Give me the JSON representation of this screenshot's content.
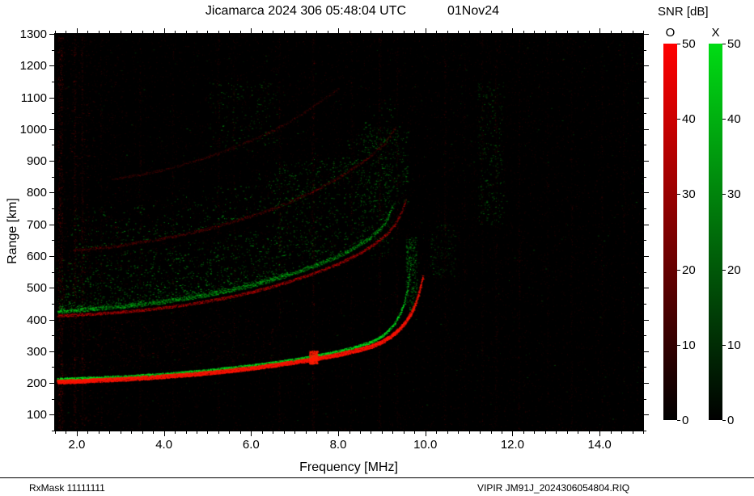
{
  "header": {
    "title_left": "Jicamarca 2024 306 05:48:04 UTC",
    "title_right": "01Nov24"
  },
  "footer": {
    "left": "RxMask 11111111",
    "right": "VIPIR  JM91J_2024306054804.RIQ"
  },
  "chart_data": {
    "type": "heatmap",
    "title": "Jicamarca 2024 306 05:48:04 UTC  01Nov24",
    "xlabel": "Frequency [MHz]",
    "ylabel": "Range [km]",
    "xlim": [
      1.5,
      15.0
    ],
    "ylim": [
      50,
      1300
    ],
    "xticks": [
      2.0,
      4.0,
      6.0,
      8.0,
      10.0,
      12.0,
      14.0
    ],
    "xtick_labels": [
      "2.0",
      "4.0",
      "6.0",
      "8.0",
      "10.0",
      "12.0",
      "14.0"
    ],
    "yticks": [
      100,
      200,
      300,
      400,
      500,
      600,
      700,
      800,
      900,
      1000,
      1100,
      1200,
      1300
    ],
    "x_minor_step": 0.25,
    "y_minor_step": 50,
    "background": "#000000",
    "colorbar_title": "SNR [dB]",
    "colorbars": [
      {
        "label": "O",
        "ticks": [
          0,
          10,
          20,
          30,
          40,
          50
        ],
        "top_color": "#ff0000",
        "bottom_color": "#000000"
      },
      {
        "label": "X",
        "ticks": [
          0,
          10,
          20,
          30,
          40,
          50
        ],
        "top_color": "#00dc14",
        "bottom_color": "#000000"
      }
    ],
    "noise": {
      "count": 24000,
      "color": [
        150,
        0,
        0
      ],
      "max_alpha": 0.3
    },
    "traces": [
      {
        "name": "F-region 4th hop O",
        "color": [
          185,
          0,
          0
        ],
        "width_km": 8,
        "alpha": 0.25,
        "density": 2,
        "fill": 0.5,
        "points": [
          [
            2.8,
            842
          ],
          [
            4.0,
            872
          ],
          [
            5.0,
            912
          ],
          [
            6.0,
            965
          ],
          [
            6.5,
            996
          ],
          [
            7.0,
            1034
          ],
          [
            7.5,
            1080
          ],
          [
            8.0,
            1130
          ]
        ]
      },
      {
        "name": "F-region 3rd hop O",
        "color": [
          200,
          0,
          0
        ],
        "width_km": 9,
        "alpha": 0.32,
        "density": 2,
        "fill": 0.6,
        "speckle_above": 120,
        "speckle_density": 0.5,
        "speckle_color": [
          0,
          210,
          25
        ],
        "points": [
          [
            1.9,
            618
          ],
          [
            3.0,
            634
          ],
          [
            4.0,
            656
          ],
          [
            5.0,
            686
          ],
          [
            6.0,
            726
          ],
          [
            6.5,
            750
          ],
          [
            7.0,
            778
          ],
          [
            7.5,
            810
          ],
          [
            8.0,
            848
          ],
          [
            8.5,
            892
          ],
          [
            8.8,
            922
          ],
          [
            9.1,
            962
          ],
          [
            9.3,
            1005
          ]
        ]
      },
      {
        "name": "F-region 2nd hop O",
        "color": [
          230,
          0,
          0
        ],
        "width_km": 9,
        "alpha": 0.5,
        "density": 3,
        "fill": 0.8,
        "points": [
          [
            1.55,
            412
          ],
          [
            2.0,
            415
          ],
          [
            2.5,
            419
          ],
          [
            3.0,
            424
          ],
          [
            3.5,
            430
          ],
          [
            4.0,
            438
          ],
          [
            4.5,
            447
          ],
          [
            5.0,
            458
          ],
          [
            5.5,
            471
          ],
          [
            6.0,
            487
          ],
          [
            6.5,
            505
          ],
          [
            7.0,
            526
          ],
          [
            7.5,
            549
          ],
          [
            8.0,
            576
          ],
          [
            8.5,
            610
          ],
          [
            8.8,
            636
          ],
          [
            9.1,
            668
          ],
          [
            9.3,
            700
          ],
          [
            9.45,
            740
          ],
          [
            9.55,
            780
          ]
        ]
      },
      {
        "name": "F-region 2nd hop X",
        "color": [
          0,
          215,
          25
        ],
        "width_km": 12,
        "alpha": 0.55,
        "density": 3,
        "fill": 0.7,
        "boost": true,
        "speckle_above": 170,
        "speckle_density": 2,
        "speckle_strong_until": 6.8,
        "points": [
          [
            1.55,
            426
          ],
          [
            2.0,
            430
          ],
          [
            3.0,
            440
          ],
          [
            4.0,
            456
          ],
          [
            5.0,
            478
          ],
          [
            6.0,
            507
          ],
          [
            6.5,
            526
          ],
          [
            7.0,
            548
          ],
          [
            7.5,
            572
          ],
          [
            8.0,
            600
          ],
          [
            8.3,
            622
          ],
          [
            8.7,
            655
          ],
          [
            9.0,
            692
          ],
          [
            9.15,
            725
          ],
          [
            9.25,
            760
          ]
        ]
      },
      {
        "name": "F-region 1st hop X",
        "color": [
          0,
          235,
          30
        ],
        "width_km": 9,
        "alpha": 0.8,
        "density": 4,
        "fill": 0.75,
        "boost": true,
        "points": [
          [
            1.55,
            212
          ],
          [
            2.0,
            214
          ],
          [
            3.0,
            220
          ],
          [
            4.0,
            228
          ],
          [
            5.0,
            240
          ],
          [
            6.0,
            255
          ],
          [
            6.5,
            264
          ],
          [
            7.0,
            274
          ],
          [
            7.5,
            286
          ],
          [
            8.0,
            300
          ],
          [
            8.4,
            314
          ],
          [
            8.8,
            332
          ],
          [
            9.0,
            348
          ],
          [
            9.15,
            365
          ],
          [
            9.3,
            390
          ],
          [
            9.42,
            420
          ],
          [
            9.52,
            455
          ],
          [
            9.58,
            495
          ],
          [
            9.63,
            545
          ],
          [
            9.66,
            590
          ]
        ]
      },
      {
        "name": "F-region 1st hop O",
        "color": [
          255,
          20,
          0
        ],
        "width_km": 13,
        "alpha": 0.95,
        "density": 7,
        "fill": 1,
        "boost": true,
        "points": [
          [
            1.55,
            204
          ],
          [
            2.0,
            206
          ],
          [
            2.5,
            209
          ],
          [
            3.0,
            212
          ],
          [
            3.5,
            216
          ],
          [
            4.0,
            221
          ],
          [
            4.5,
            226
          ],
          [
            5.0,
            232
          ],
          [
            5.5,
            239
          ],
          [
            6.0,
            247
          ],
          [
            6.5,
            256
          ],
          [
            7.0,
            266
          ],
          [
            7.5,
            277
          ],
          [
            8.0,
            290
          ],
          [
            8.5,
            306
          ],
          [
            8.8,
            318
          ],
          [
            9.0,
            330
          ],
          [
            9.2,
            347
          ],
          [
            9.4,
            370
          ],
          [
            9.55,
            395
          ],
          [
            9.7,
            428
          ],
          [
            9.8,
            462
          ],
          [
            9.88,
            500
          ],
          [
            9.94,
            535
          ]
        ]
      }
    ],
    "rfi_lines": [
      {
        "f": 1.62,
        "w": 6,
        "i": 0.8
      },
      {
        "f": 1.95,
        "w": 3,
        "i": 0.5
      },
      {
        "f": 2.12,
        "w": 2,
        "i": 0.4
      },
      {
        "f": 2.55,
        "w": 2,
        "i": 0.2
      },
      {
        "f": 3.45,
        "w": 2,
        "i": 0.25
      },
      {
        "f": 4.2,
        "w": 2,
        "i": 0.2
      },
      {
        "f": 5.25,
        "w": 3,
        "i": 0.25
      },
      {
        "f": 5.6,
        "w": 2,
        "i": 0.2
      },
      {
        "f": 6.65,
        "w": 2,
        "i": 0.25
      },
      {
        "f": 7.42,
        "w": 3,
        "i": 0.4
      },
      {
        "f": 8.3,
        "w": 2,
        "i": 0.2
      },
      {
        "f": 8.95,
        "w": 3,
        "i": 0.35
      },
      {
        "f": 9.35,
        "w": 2,
        "i": 0.25
      },
      {
        "f": 10.45,
        "w": 2,
        "i": 0.25
      },
      {
        "f": 10.9,
        "w": 2,
        "i": 0.15
      },
      {
        "f": 11.3,
        "w": 2,
        "i": 0.2
      },
      {
        "f": 11.62,
        "w": 3,
        "i": 0.25
      },
      {
        "f": 12.15,
        "w": 2,
        "i": 0.25
      },
      {
        "f": 12.8,
        "w": 2,
        "i": 0.18
      },
      {
        "f": 13.35,
        "w": 2,
        "i": 0.2
      },
      {
        "f": 14.05,
        "w": 2,
        "i": 0.18
      },
      {
        "f": 14.55,
        "w": 2,
        "i": 0.2
      }
    ],
    "speckle_patches": [
      {
        "f": [
          6.5,
          9.25
        ],
        "r": [
          600,
          900
        ],
        "c": "g",
        "n": 550,
        "a": 0.5
      },
      {
        "f": [
          5.0,
          6.6
        ],
        "r": [
          930,
          1150
        ],
        "c": "g",
        "n": 170,
        "a": 0.45
      },
      {
        "f": [
          8.5,
          9.6
        ],
        "r": [
          760,
          1010
        ],
        "c": "g",
        "n": 280,
        "a": 0.5
      },
      {
        "f": [
          11.2,
          11.8
        ],
        "r": [
          700,
          1150
        ],
        "c": "g",
        "n": 240,
        "a": 0.45
      },
      {
        "f": [
          10.1,
          10.7
        ],
        "r": [
          530,
          700
        ],
        "c": "g",
        "n": 100,
        "a": 0.4
      },
      {
        "f": [
          2.0,
          6.5
        ],
        "r": [
          255,
          400
        ],
        "c": "r",
        "n": 300,
        "a": 0.3
      },
      {
        "f": [
          9.55,
          9.8
        ],
        "r": [
          430,
          660
        ],
        "c": "g",
        "n": 260,
        "a": 0.55
      },
      {
        "f": [
          1.55,
          2.3
        ],
        "r": [
          60,
          1290
        ],
        "c": "r",
        "n": 500,
        "a": 0.3
      },
      {
        "f": [
          2.3,
          3.2
        ],
        "r": [
          60,
          1290
        ],
        "c": "r",
        "n": 250,
        "a": 0.2
      },
      {
        "f": [
          1.6,
          15.0
        ],
        "r": [
          60,
          1290
        ],
        "c": "g",
        "n": 420,
        "a": 0.3
      },
      {
        "f": [
          7.33,
          7.52
        ],
        "r": [
          260,
          302
        ],
        "c": "rb",
        "n": 420,
        "a": 0.95
      }
    ]
  }
}
